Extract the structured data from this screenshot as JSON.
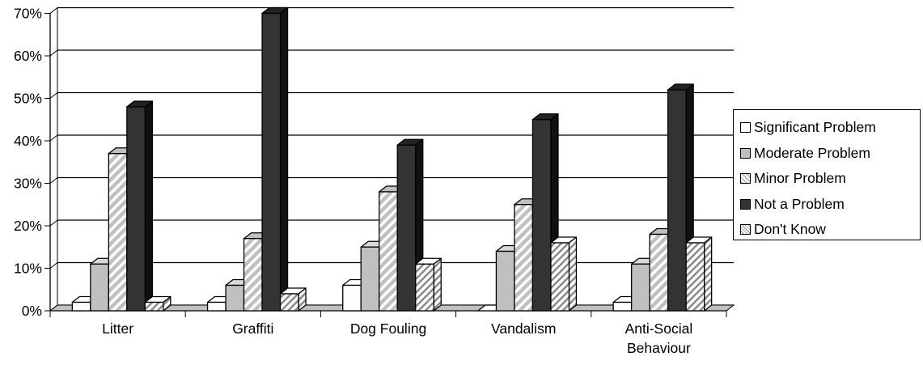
{
  "chart_data": {
    "type": "bar",
    "categories": [
      "Litter",
      "Graffiti",
      "Dog Fouling",
      "Vandalism",
      "Anti-Social Behaviour"
    ],
    "category_lines": [
      [
        "Litter"
      ],
      [
        "Graffiti"
      ],
      [
        "Dog Fouling"
      ],
      [
        "Vandalism"
      ],
      [
        "Anti-Social",
        "Behaviour"
      ]
    ],
    "series": [
      {
        "name": "Significant Problem",
        "values": [
          2,
          2,
          6,
          0,
          2
        ],
        "fill": "#ffffff",
        "pattern": "none"
      },
      {
        "name": "Moderate Problem",
        "values": [
          11,
          6,
          15,
          14,
          11
        ],
        "fill": "#c0c0c0",
        "pattern": "none"
      },
      {
        "name": "Minor Problem",
        "values": [
          37,
          17,
          28,
          25,
          18
        ],
        "fill": "#c0c0c0",
        "pattern": "diagonal-white-stripes"
      },
      {
        "name": "Not a Problem",
        "values": [
          48,
          70,
          39,
          45,
          52
        ],
        "fill": "#333333",
        "pattern": "none"
      },
      {
        "name": "Don't Know",
        "values": [
          2,
          4,
          11,
          16,
          16
        ],
        "fill": "#ffffff",
        "pattern": "diagonal-grey-stripes"
      }
    ],
    "y_ticks": [
      "0%",
      "10%",
      "20%",
      "30%",
      "40%",
      "50%",
      "60%",
      "70%"
    ],
    "ylim": [
      0,
      70
    ],
    "grid": true,
    "legend_position": "right",
    "title": "",
    "xlabel": "",
    "ylabel": ""
  }
}
